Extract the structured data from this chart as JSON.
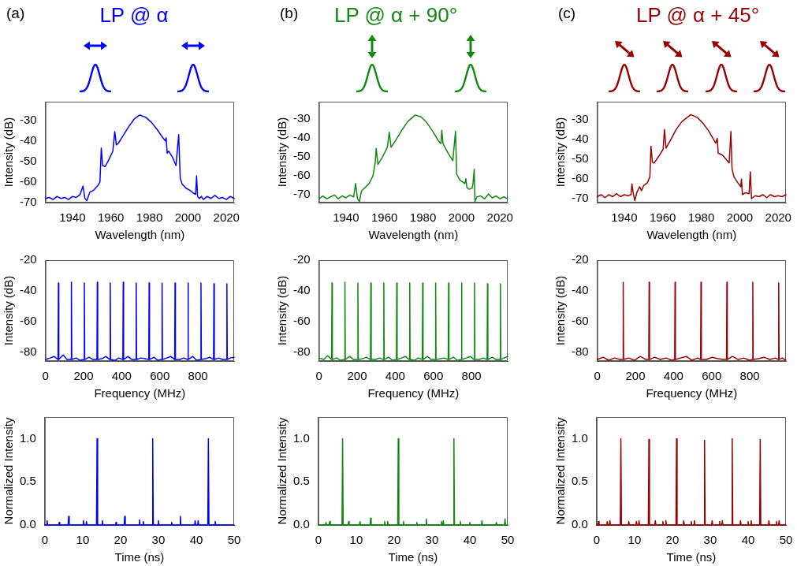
{
  "chart_data": [
    {
      "type": "line",
      "title": "LP @ α",
      "annotations": [
        "(a)"
      ],
      "xlabel": "Wavelength (nm)",
      "ylabel": "Intensity (dB)",
      "xlim": [
        1926,
        2024
      ],
      "xticks": [
        1940,
        1960,
        1980,
        2000,
        2020
      ],
      "ylim": [
        -70,
        -21
      ],
      "yticks": [
        -70,
        -60,
        -50,
        -40,
        -30
      ],
      "grid": false,
      "legend": false,
      "marker": "none",
      "x": [
        1926,
        1928,
        1930,
        1932,
        1934,
        1936,
        1938,
        1940,
        1942,
        1944,
        1945.5,
        1946.5,
        1947.5,
        1949,
        1951,
        1953,
        1954.3,
        1955,
        1955.7,
        1957,
        1959,
        1961,
        1962,
        1962.8,
        1964,
        1966,
        1969,
        1972,
        1975,
        1978,
        1981,
        1984,
        1987,
        1988.2,
        1988.7,
        1989.2,
        1990,
        1992,
        1993.8,
        1995.2,
        1996,
        1997,
        1999,
        2001,
        2003,
        2004,
        2004.5,
        2005,
        2006,
        2007,
        2008,
        2010,
        2012,
        2014,
        2016,
        2018,
        2020,
        2022,
        2024
      ],
      "series": [
        {
          "color": "#0000ff",
          "values": [
            -68,
            -67.5,
            -68.5,
            -67,
            -68,
            -67.5,
            -68.5,
            -67,
            -67.5,
            -66,
            -62,
            -68,
            -69,
            -65,
            -64,
            -62,
            -60,
            -43.5,
            -52,
            -52.5,
            -49,
            -45,
            -35.5,
            -42,
            -41,
            -38,
            -33.5,
            -29.5,
            -27.5,
            -28.5,
            -31,
            -34.5,
            -38.5,
            -40,
            -38.5,
            -46,
            -45,
            -48,
            -52,
            -37,
            -58,
            -61,
            -63,
            -64,
            -65.5,
            -66,
            -57,
            -67,
            -68,
            -67,
            -68.5,
            -67,
            -68,
            -66.5,
            -68,
            -67.5,
            -68.5,
            -67,
            -68
          ]
        }
      ]
    },
    {
      "type": "line",
      "title": "LP @ α + 90°",
      "annotations": [
        "(b)"
      ],
      "xlabel": "Wavelength (nm)",
      "ylabel": "Intensity (dB)",
      "xlim": [
        1926,
        2024
      ],
      "xticks": [
        1940,
        1960,
        1980,
        2000,
        2020
      ],
      "ylim": [
        -74,
        -21
      ],
      "yticks": [
        -70,
        -60,
        -50,
        -40,
        -30
      ],
      "grid": false,
      "legend": false,
      "marker": "none",
      "x": [
        1926,
        1928,
        1930,
        1932,
        1934,
        1936,
        1938,
        1940,
        1942,
        1944,
        1945,
        1946,
        1947,
        1948,
        1950,
        1952,
        1954,
        1955.2,
        1955.7,
        1956.6,
        1959,
        1961.5,
        1962.5,
        1963.4,
        1966,
        1969,
        1972,
        1976,
        1979,
        1982,
        1985,
        1988,
        1989.3,
        1989.8,
        1990.4,
        1993,
        1995.5,
        1996.9,
        1997.5,
        1999,
        2001.8,
        2002.3,
        2002.8,
        2004,
        2005.5,
        2006,
        2006.6,
        2007,
        2008,
        2010,
        2012,
        2014,
        2016,
        2018,
        2020,
        2022,
        2024
      ],
      "series": [
        {
          "color": "#118811",
          "values": [
            -72,
            -70.5,
            -72,
            -71,
            -70,
            -72,
            -70.5,
            -71.5,
            -70,
            -71,
            -64,
            -72,
            -73.5,
            -68,
            -66,
            -64,
            -60,
            -53,
            -45.5,
            -54,
            -50,
            -45,
            -37,
            -45,
            -41,
            -36,
            -31.5,
            -28,
            -29,
            -32,
            -36.5,
            -41.5,
            -43,
            -36,
            -43,
            -48,
            -52,
            -36.5,
            -59,
            -62,
            -64,
            -61.5,
            -66,
            -67,
            -66.5,
            -64,
            -56.5,
            -73.5,
            -71,
            -70.5,
            -72,
            -69.5,
            -71.5,
            -70.5,
            -72,
            -71,
            -72
          ]
        }
      ]
    },
    {
      "type": "line",
      "title": "LP @ α + 45°",
      "annotations": [
        "(c)"
      ],
      "xlabel": "Wavelength (nm)",
      "ylabel": "Intensity (dB)",
      "xlim": [
        1926,
        2024
      ],
      "xticks": [
        1940,
        1960,
        1980,
        2000,
        2020
      ],
      "ylim": [
        -72,
        -21
      ],
      "yticks": [
        -70,
        -60,
        -50,
        -40,
        -30
      ],
      "grid": false,
      "legend": false,
      "marker": "none",
      "x": [
        1926,
        1928,
        1930,
        1932,
        1934,
        1936,
        1938,
        1940,
        1942,
        1943.5,
        1944,
        1944.6,
        1945.5,
        1946.5,
        1948,
        1949,
        1950,
        1952,
        1953.3,
        1953.9,
        1954.6,
        1955.5,
        1958,
        1960.2,
        1960.9,
        1961.7,
        1964,
        1967,
        1970,
        1974.6,
        1978,
        1981,
        1984,
        1987.5,
        1988.3,
        1988.8,
        1991,
        1994.5,
        1995.4,
        1996,
        1997,
        1999,
        2000.5,
        2000.9,
        2001.4,
        2003,
        2004.8,
        2005.5,
        2006.1,
        2008,
        2010,
        2012,
        2014,
        2016,
        2018,
        2020,
        2022,
        2024
      ],
      "series": [
        {
          "color": "#990000",
          "values": [
            -69,
            -68,
            -69.5,
            -68,
            -69,
            -67.5,
            -69,
            -68,
            -68.5,
            -68,
            -62.5,
            -67,
            -71,
            -67,
            -64,
            -66,
            -63.5,
            -62,
            -59,
            -43.5,
            -51.5,
            -52,
            -48.5,
            -45,
            -35,
            -44.5,
            -40.5,
            -35,
            -31,
            -27.5,
            -29,
            -32,
            -36,
            -42,
            -39.5,
            -47,
            -48,
            -52,
            -36,
            -55,
            -59,
            -62,
            -64,
            -60,
            -68,
            -67,
            -67.5,
            -56.5,
            -70,
            -68.5,
            -69,
            -68,
            -69.5,
            -68,
            -69,
            -68.5,
            -69,
            -68
          ]
        }
      ]
    },
    {
      "type": "line",
      "xlabel": "Frequency (MHz)",
      "ylabel": "Intensity (dB)",
      "xlim": [
        0,
        990
      ],
      "xticks": [
        0,
        200,
        400,
        600,
        800
      ],
      "ylim": [
        -86,
        -20
      ],
      "yticks": [
        -80,
        -60,
        -40,
        -20
      ],
      "grid": false,
      "legend": false,
      "marker": "none",
      "x": [
        0,
        25,
        45,
        66,
        68,
        70,
        93,
        113,
        134,
        136,
        138,
        161,
        181,
        202,
        204,
        206,
        229,
        249,
        270,
        272,
        274,
        297,
        317,
        338,
        340,
        342,
        365,
        385,
        406,
        408,
        410,
        433,
        453,
        474,
        476,
        478,
        501,
        521,
        542,
        544,
        546,
        569,
        589,
        610,
        612,
        614,
        637,
        657,
        678,
        680,
        682,
        705,
        725,
        746,
        748,
        750,
        773,
        793,
        814,
        816,
        818,
        841,
        861,
        882,
        884,
        886,
        909,
        929,
        950,
        952,
        954,
        970,
        990
      ],
      "series": [
        {
          "color": "#0000ff",
          "values": [
            -85,
            -84,
            -83,
            -85,
            -35,
            -85,
            -82,
            -85,
            -85,
            -34.5,
            -85,
            -84,
            -85.5,
            -85,
            -35,
            -85,
            -83.5,
            -85,
            -85,
            -34.5,
            -85,
            -84.5,
            -83,
            -85,
            -35,
            -85,
            -85.5,
            -84,
            -85,
            -34.5,
            -85,
            -83,
            -85,
            -85,
            -35,
            -85,
            -84,
            -84.5,
            -85,
            -35,
            -85,
            -83.5,
            -85.5,
            -85,
            -35,
            -85,
            -84,
            -83,
            -85,
            -35,
            -85,
            -85,
            -84,
            -85,
            -35,
            -85,
            -83,
            -85.5,
            -85,
            -35,
            -85,
            -84.5,
            -83.5,
            -85,
            -35.5,
            -85,
            -84,
            -85,
            -85,
            -35.5,
            -85,
            -84,
            -83.5
          ]
        }
      ]
    },
    {
      "type": "line",
      "xlabel": "Frequency (MHz)",
      "ylabel": "Intensity (dB)",
      "xlim": [
        0,
        990
      ],
      "xticks": [
        0,
        200,
        400,
        600,
        800
      ],
      "ylim": [
        -86,
        -20
      ],
      "yticks": [
        -80,
        -60,
        -40,
        -20
      ],
      "grid": false,
      "legend": false,
      "marker": "none",
      "x": [
        0,
        25,
        45,
        66,
        68,
        70,
        93,
        113,
        134,
        136,
        138,
        161,
        181,
        202,
        204,
        206,
        229,
        249,
        270,
        272,
        274,
        297,
        317,
        338,
        340,
        342,
        365,
        385,
        406,
        408,
        410,
        433,
        453,
        474,
        476,
        478,
        501,
        521,
        542,
        544,
        546,
        569,
        589,
        610,
        612,
        614,
        637,
        657,
        678,
        680,
        682,
        705,
        725,
        746,
        748,
        750,
        773,
        793,
        814,
        816,
        818,
        841,
        861,
        882,
        884,
        886,
        909,
        929,
        950,
        952,
        954,
        970,
        990
      ],
      "series": [
        {
          "color": "#118811",
          "values": [
            -84,
            -85,
            -82.5,
            -85,
            -35,
            -85,
            -84,
            -85.5,
            -85,
            -34.5,
            -85,
            -83,
            -85,
            -85,
            -35,
            -85,
            -84.5,
            -83.5,
            -85,
            -35,
            -85,
            -85,
            -84,
            -85,
            -35,
            -85,
            -83.5,
            -85.5,
            -85,
            -35,
            -85,
            -84,
            -83,
            -85,
            -35,
            -85,
            -85.5,
            -84,
            -85,
            -35,
            -85,
            -83,
            -85,
            -85,
            -35,
            -85,
            -84.5,
            -84,
            -85,
            -35,
            -85,
            -83.5,
            -85.5,
            -85,
            -35,
            -85,
            -84,
            -83,
            -85,
            -35,
            -85,
            -85,
            -84,
            -85,
            -35.5,
            -85,
            -83.5,
            -85,
            -85,
            -35.5,
            -85,
            -84,
            -83
          ]
        }
      ]
    },
    {
      "type": "line",
      "xlabel": "Frequency (MHz)",
      "ylabel": "Intensity (dB)",
      "xlim": [
        0,
        990
      ],
      "xticks": [
        0,
        200,
        400,
        600,
        800
      ],
      "ylim": [
        -86,
        -20
      ],
      "yticks": [
        -80,
        -60,
        -40,
        -20
      ],
      "grid": false,
      "legend": false,
      "marker": "none",
      "x": [
        0,
        30,
        60,
        90,
        120,
        134,
        136,
        138,
        165,
        195,
        225,
        255,
        270,
        272,
        274,
        301,
        331,
        361,
        391,
        406,
        408,
        410,
        437,
        467,
        497,
        527,
        542,
        544,
        546,
        573,
        603,
        633,
        663,
        678,
        680,
        682,
        709,
        739,
        769,
        799,
        814,
        816,
        818,
        845,
        875,
        905,
        935,
        950,
        952,
        954,
        970,
        990
      ],
      "series": [
        {
          "color": "#990000",
          "values": [
            -85,
            -83.5,
            -85.5,
            -84,
            -85,
            -85,
            -34.5,
            -85,
            -84,
            -85.5,
            -83,
            -85,
            -85,
            -34.5,
            -85,
            -83.5,
            -85,
            -84,
            -85.5,
            -85,
            -34.5,
            -85,
            -84,
            -83,
            -85.5,
            -84,
            -85,
            -34.5,
            -85,
            -85,
            -83.5,
            -84.5,
            -85,
            -85,
            -34.5,
            -85,
            -83,
            -85,
            -84,
            -85.5,
            -85,
            -34.5,
            -85,
            -84.5,
            -83.5,
            -85,
            -84,
            -85,
            -35,
            -85,
            -84,
            -85.5
          ]
        }
      ]
    },
    {
      "type": "line",
      "xlabel": "Time (ns)",
      "ylabel": "Normalized Intensity",
      "xlim": [
        0,
        50
      ],
      "xticks": [
        0,
        10,
        20,
        30,
        40,
        50
      ],
      "ylim": [
        0,
        1.25
      ],
      "yticks": [
        {
          "value": 0,
          "label": "0.0"
        },
        {
          "value": 0.5,
          "label": "0.5"
        },
        {
          "value": 1,
          "label": "1.0"
        }
      ],
      "grid": false,
      "legend": false,
      "marker": "none",
      "x": [
        0,
        0.45,
        0.6,
        0.75,
        3.65,
        3.8,
        3.95,
        6.15,
        6.3,
        6.45,
        10.05,
        10.2,
        10.35,
        10.85,
        11,
        11.15,
        13.65,
        13.8,
        13.95,
        15.05,
        15.2,
        15.35,
        18.65,
        18.8,
        18.95,
        20.95,
        21.1,
        21.25,
        24.85,
        25,
        25.15,
        25.85,
        26,
        26.15,
        28.35,
        28.5,
        28.65,
        29.85,
        30,
        30.15,
        33.35,
        33.5,
        33.65,
        35.65,
        35.8,
        35.95,
        39.55,
        39.7,
        39.85,
        40.35,
        40.5,
        40.65,
        43.05,
        43.2,
        43.35,
        44.85,
        45,
        45.15,
        50
      ],
      "series": [
        {
          "color": "#0000ff",
          "values": [
            0,
            0,
            0.05,
            0,
            0,
            0.03,
            0,
            0,
            0.1,
            0,
            0,
            0.05,
            0,
            0,
            0.04,
            0,
            0,
            1,
            0,
            0,
            0.05,
            0,
            0,
            0.03,
            0,
            0,
            0.1,
            0,
            0,
            0.06,
            0,
            0,
            0.04,
            0,
            0,
            1,
            0,
            0,
            0.05,
            0,
            0,
            0.03,
            0,
            0,
            0.1,
            0,
            0,
            0.05,
            0,
            0,
            0.05,
            0,
            0,
            1,
            0,
            0,
            0.04,
            0,
            0
          ]
        }
      ]
    },
    {
      "type": "line",
      "xlabel": "Time (ns)",
      "ylabel": "Normalized Intensity",
      "xlim": [
        0,
        50
      ],
      "xticks": [
        0,
        10,
        20,
        30,
        40,
        50
      ],
      "ylim": [
        0,
        1.25
      ],
      "yticks": [
        {
          "value": 0,
          "label": "0.0"
        },
        {
          "value": 0.5,
          "label": "0.5"
        },
        {
          "value": 1,
          "label": "1.0"
        }
      ],
      "grid": false,
      "legend": false,
      "marker": "none",
      "x": [
        0,
        1.85,
        2,
        2.15,
        2.85,
        3,
        3.15,
        6.25,
        6.4,
        6.55,
        7.85,
        8,
        8.15,
        10.85,
        11,
        11.15,
        13.65,
        13.8,
        13.95,
        17.35,
        17.5,
        17.65,
        18.15,
        18.3,
        18.45,
        20.95,
        21.1,
        21.25,
        22.35,
        22.5,
        22.65,
        25.85,
        26,
        26.15,
        28.35,
        28.5,
        28.65,
        32.35,
        32.5,
        32.65,
        32.85,
        33,
        33.15,
        35.65,
        35.8,
        35.95,
        37.35,
        37.5,
        37.65,
        39.85,
        40,
        40.15,
        43.05,
        43.2,
        43.35,
        46.85,
        47,
        47.15,
        49.15,
        49.3,
        49.45,
        50
      ],
      "series": [
        {
          "color": "#118811",
          "values": [
            0,
            0,
            0.03,
            0,
            0,
            0.04,
            0,
            0,
            1,
            0,
            0,
            0.04,
            0,
            0,
            0.04,
            0,
            0,
            0.08,
            0,
            0,
            0.04,
            0,
            0,
            0.04,
            0,
            0,
            1,
            0,
            0,
            0.04,
            0,
            0,
            0.03,
            0,
            0,
            0.07,
            0,
            0,
            0.04,
            0,
            0,
            0.05,
            0,
            0,
            1,
            0,
            0,
            0.04,
            0,
            0,
            0.03,
            0,
            0,
            0.05,
            0,
            0,
            0.03,
            0,
            0,
            0.07,
            0,
            0
          ]
        }
      ]
    },
    {
      "type": "line",
      "xlabel": "Time (ns)",
      "ylabel": "Normalized Intensity",
      "xlim": [
        0,
        50
      ],
      "xticks": [
        0,
        10,
        20,
        30,
        40,
        50
      ],
      "ylim": [
        0,
        1.25
      ],
      "yticks": [
        {
          "value": 0,
          "label": "0.0"
        },
        {
          "value": 0.5,
          "label": "0.5"
        },
        {
          "value": 1,
          "label": "1.0"
        }
      ],
      "grid": false,
      "legend": false,
      "marker": "none",
      "x": [
        0,
        0.35,
        0.5,
        0.65,
        2.65,
        2.8,
        2.95,
        3.35,
        3.5,
        3.65,
        6.25,
        6.4,
        6.55,
        8.35,
        8.5,
        8.65,
        10.35,
        10.5,
        10.65,
        11.05,
        11.2,
        11.35,
        13.65,
        13.8,
        13.95,
        15.35,
        15.5,
        15.65,
        17.35,
        17.5,
        17.65,
        18.15,
        18.3,
        18.45,
        20.95,
        21.1,
        21.25,
        22.85,
        23,
        23.15,
        24.85,
        25,
        25.15,
        25.65,
        25.8,
        25.95,
        28.35,
        28.5,
        28.65,
        30.35,
        30.5,
        30.65,
        32.35,
        32.5,
        32.65,
        33.05,
        33.2,
        33.35,
        35.65,
        35.8,
        35.95,
        37.85,
        38,
        38.15,
        39.85,
        40,
        40.15,
        40.65,
        40.8,
        40.95,
        43.05,
        43.2,
        43.35,
        45.35,
        45.5,
        45.65,
        47.35,
        47.5,
        47.65,
        48.05,
        48.2,
        48.35,
        50
      ],
      "series": [
        {
          "color": "#990000",
          "values": [
            0,
            0,
            0.04,
            0,
            0,
            0.04,
            0,
            0,
            0.05,
            0,
            0,
            1,
            0,
            0,
            0.04,
            0,
            0,
            0.04,
            0,
            0,
            0.05,
            0,
            0,
            0.99,
            0,
            0,
            0.05,
            0,
            0,
            0.04,
            0,
            0,
            0.05,
            0,
            0,
            1,
            0,
            0,
            0.05,
            0,
            0,
            0.04,
            0,
            0,
            0.05,
            0,
            0,
            0.98,
            0,
            0,
            0.05,
            0,
            0,
            0.04,
            0,
            0,
            0.05,
            0,
            0,
            1,
            0,
            0,
            0.05,
            0,
            0,
            0.04,
            0,
            0,
            0.05,
            0,
            0,
            0.99,
            0,
            0,
            0.05,
            0,
            0,
            0.04,
            0,
            0,
            0.05,
            0,
            0
          ]
        }
      ]
    }
  ]
}
